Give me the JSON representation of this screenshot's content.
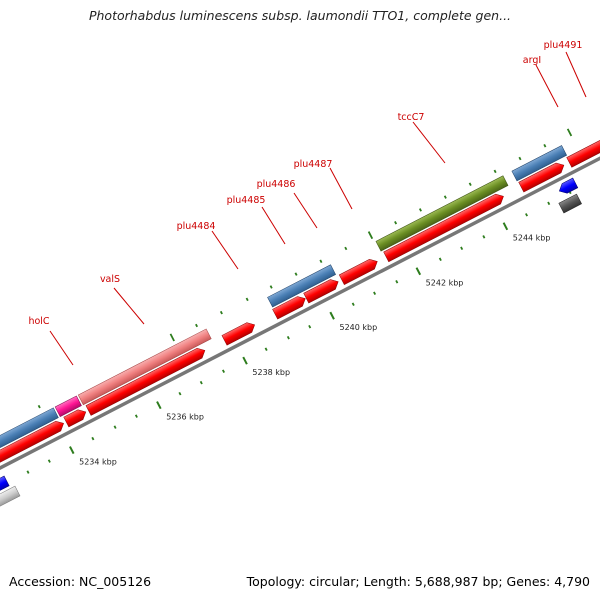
{
  "title": "Photorhabdus luminescens subsp. laumondii TTO1, complete gen...",
  "footer": {
    "accession": "Accession: NC_005126",
    "topology": "Topology: circular; Length: 5,688,987 bp; Genes: 4,790"
  },
  "colors": {
    "backbone": "#888888",
    "forward_gene": "#ff0000",
    "tick": "#2e7d1e",
    "label": "#cc0000",
    "blue_feature": "#4a7fb5",
    "pink_feature": "#f08080",
    "magenta_feature": "#ff1493",
    "olive_feature": "#6b8e23",
    "deep_blue_feature": "#0000ff",
    "dark_gray_feature": "#555555",
    "light_gray_feature": "#cccccc"
  },
  "scale_labels": [
    "5234 kbp",
    "5236 kbp",
    "5238 kbp",
    "5240 kbp",
    "5242 kbp",
    "5244 kbp"
  ],
  "gene_labels": [
    "holC",
    "valS",
    "plu4484",
    "plu4485",
    "plu4486",
    "plu4487",
    "tccC7",
    "argI",
    "plu4491"
  ]
}
